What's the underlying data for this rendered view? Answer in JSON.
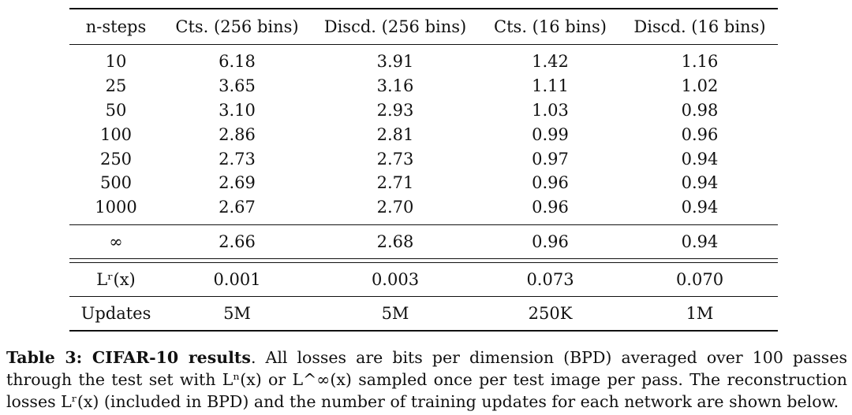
{
  "table": {
    "headers": [
      "n-steps",
      "Cts. (256 bins)",
      "Discd. (256 bins)",
      "Cts. (16 bins)",
      "Discd. (16 bins)"
    ],
    "rows": [
      [
        "10",
        "6.18",
        "3.91",
        "1.42",
        "1.16"
      ],
      [
        "25",
        "3.65",
        "3.16",
        "1.11",
        "1.02"
      ],
      [
        "50",
        "3.10",
        "2.93",
        "1.03",
        "0.98"
      ],
      [
        "100",
        "2.86",
        "2.81",
        "0.99",
        "0.96"
      ],
      [
        "250",
        "2.73",
        "2.73",
        "0.97",
        "0.94"
      ],
      [
        "500",
        "2.69",
        "2.71",
        "0.96",
        "0.94"
      ],
      [
        "1000",
        "2.67",
        "2.70",
        "0.96",
        "0.94"
      ]
    ],
    "infinity_row": [
      "∞",
      "2.66",
      "2.68",
      "0.96",
      "0.94"
    ],
    "reconstruction_row": [
      "Lʳ(x)",
      "0.001",
      "0.003",
      "0.073",
      "0.070"
    ],
    "updates_row": [
      "Updates",
      "5M",
      "5M",
      "250K",
      "1M"
    ]
  },
  "caption": {
    "label": "Table 3: CIFAR-10 results",
    "text": ". All losses are bits per dimension (BPD) averaged over 100 passes through the test set with Lⁿ(x) or L^∞(x) sampled once per test image per pass. The reconstruction losses Lʳ(x) (included in BPD) and the number of training updates for each network are shown below."
  }
}
